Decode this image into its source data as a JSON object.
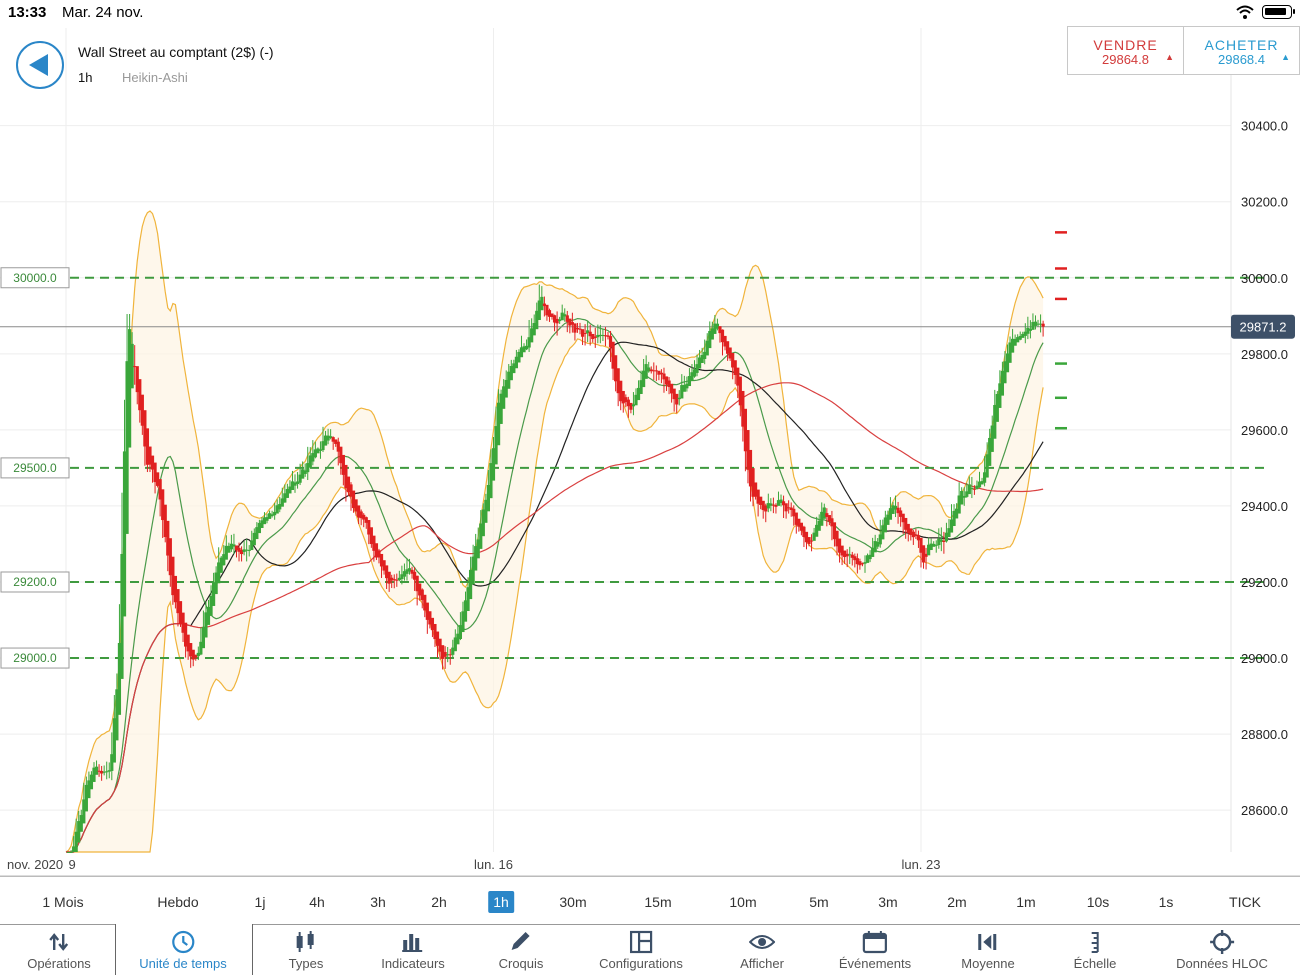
{
  "status_bar": {
    "time": "13:33",
    "date": "Mar. 24 nov."
  },
  "header": {
    "title": "Wall Street au comptant (2$) (-)",
    "interval": "1h",
    "chart_type": "Heikin-Ashi"
  },
  "quote": {
    "sell_label": "VENDRE",
    "sell_price": "29864.8",
    "buy_label": "ACHETER",
    "buy_price": "29868.4"
  },
  "colors": {
    "accent": "#2a86c8",
    "sell": "#d23b3b",
    "buy": "#2a9bd0",
    "candle_up": "#3aa63a",
    "candle_down": "#e02020",
    "bollinger": "#f0b43c",
    "ma_fast": "#4a9a4a",
    "ma_mid": "#222222",
    "ma_slow": "#d94040",
    "level_line": "#3f9a3f"
  },
  "chart_data": {
    "type": "candlestick",
    "y_ticks": [
      "30400.0",
      "30200.0",
      "30000.0",
      "29800.0",
      "29600.0",
      "29400.0",
      "29200.0",
      "29000.0",
      "28800.0",
      "28600.0"
    ],
    "y_tick_values": [
      30400,
      30200,
      30000,
      29800,
      29600,
      29400,
      29200,
      29000,
      28800,
      28600
    ],
    "ylim": [
      28490,
      30520
    ],
    "x_range_days": [
      9,
      24.5
    ],
    "date_labels": [
      {
        "text": "nov. 2020",
        "day": 8.45
      },
      {
        "text": "9",
        "day": 9.1
      },
      {
        "text": "lun. 16",
        "day": 16.0
      },
      {
        "text": "lun. 23",
        "day": 23.0
      }
    ],
    "levels": [
      {
        "label": "30000.0",
        "value": 30000
      },
      {
        "label": "29500.0",
        "value": 29500
      },
      {
        "label": "29200.0",
        "value": 29200
      },
      {
        "label": "29000.0",
        "value": 29000
      }
    ],
    "current_price": {
      "label": "29871.2",
      "value": 29871.2
    },
    "right_markers": [
      {
        "value": 30120,
        "color": "red"
      },
      {
        "value": 30025,
        "color": "red"
      },
      {
        "value": 29945,
        "color": "red"
      },
      {
        "value": 29775,
        "color": "green"
      },
      {
        "value": 29685,
        "color": "green"
      },
      {
        "value": 29605,
        "color": "green"
      }
    ],
    "path": [
      [
        9.0,
        28450
      ],
      [
        9.4,
        28710
      ],
      [
        9.7,
        28700
      ],
      [
        9.85,
        29000
      ],
      [
        10.0,
        29900
      ],
      [
        10.15,
        29700
      ],
      [
        10.3,
        29520
      ],
      [
        10.5,
        29450
      ],
      [
        10.7,
        29200
      ],
      [
        10.9,
        29050
      ],
      [
        11.1,
        28980
      ],
      [
        11.3,
        29150
      ],
      [
        11.6,
        29300
      ],
      [
        11.9,
        29280
      ],
      [
        12.2,
        29350
      ],
      [
        12.5,
        29420
      ],
      [
        12.8,
        29480
      ],
      [
        13.1,
        29550
      ],
      [
        13.35,
        29600
      ],
      [
        13.55,
        29450
      ],
      [
        13.8,
        29380
      ],
      [
        14.0,
        29300
      ],
      [
        14.3,
        29200
      ],
      [
        14.6,
        29250
      ],
      [
        14.8,
        29150
      ],
      [
        15.0,
        29050
      ],
      [
        15.2,
        29000
      ],
      [
        15.45,
        29100
      ],
      [
        15.7,
        29300
      ],
      [
        15.9,
        29450
      ],
      [
        16.1,
        29700
      ],
      [
        16.35,
        29780
      ],
      [
        16.6,
        29850
      ],
      [
        16.75,
        29950
      ],
      [
        16.9,
        29880
      ],
      [
        17.1,
        29900
      ],
      [
        17.3,
        29870
      ],
      [
        17.6,
        29850
      ],
      [
        17.85,
        29850
      ],
      [
        18.0,
        29700
      ],
      [
        18.2,
        29650
      ],
      [
        18.5,
        29780
      ],
      [
        18.8,
        29730
      ],
      [
        19.0,
        29680
      ],
      [
        19.2,
        29750
      ],
      [
        19.45,
        29810
      ],
      [
        19.6,
        29880
      ],
      [
        19.8,
        29820
      ],
      [
        20.0,
        29700
      ],
      [
        20.2,
        29420
      ],
      [
        20.45,
        29390
      ],
      [
        20.7,
        29420
      ],
      [
        20.95,
        29350
      ],
      [
        21.2,
        29300
      ],
      [
        21.4,
        29400
      ],
      [
        21.6,
        29300
      ],
      [
        21.8,
        29260
      ],
      [
        22.0,
        29250
      ],
      [
        22.3,
        29320
      ],
      [
        22.5,
        29420
      ],
      [
        22.75,
        29350
      ],
      [
        23.0,
        29270
      ],
      [
        23.15,
        29280
      ],
      [
        23.4,
        29330
      ],
      [
        23.6,
        29420
      ],
      [
        23.8,
        29450
      ],
      [
        24.0,
        29480
      ],
      [
        24.15,
        29620
      ],
      [
        24.3,
        29760
      ],
      [
        24.45,
        29850
      ],
      [
        24.7,
        29860
      ],
      [
        24.9,
        29880
      ],
      [
        25.0,
        29871
      ]
    ]
  },
  "timeframes": [
    {
      "label": "1 Mois",
      "active": false
    },
    {
      "label": "Hebdo",
      "active": false
    },
    {
      "label": "1j",
      "active": false
    },
    {
      "label": "4h",
      "active": false
    },
    {
      "label": "3h",
      "active": false
    },
    {
      "label": "2h",
      "active": false
    },
    {
      "label": "1h",
      "active": true
    },
    {
      "label": "30m",
      "active": false
    },
    {
      "label": "15m",
      "active": false
    },
    {
      "label": "10m",
      "active": false
    },
    {
      "label": "5m",
      "active": false
    },
    {
      "label": "3m",
      "active": false
    },
    {
      "label": "2m",
      "active": false
    },
    {
      "label": "1m",
      "active": false
    },
    {
      "label": "10s",
      "active": false
    },
    {
      "label": "1s",
      "active": false
    },
    {
      "label": "TICK",
      "active": false
    }
  ],
  "toolbar": [
    {
      "label": "Opérations",
      "icon": "up-down-arrows-icon",
      "active": false
    },
    {
      "label": "Unité de temps",
      "icon": "clock-icon",
      "active": true
    },
    {
      "label": "Types",
      "icon": "candlestick-icon",
      "active": false
    },
    {
      "label": "Indicateurs",
      "icon": "bar-chart-icon",
      "active": false
    },
    {
      "label": "Croquis",
      "icon": "pencil-icon",
      "active": false
    },
    {
      "label": "Configurations",
      "icon": "layout-icon",
      "active": false
    },
    {
      "label": "Afficher",
      "icon": "eye-icon",
      "active": false
    },
    {
      "label": "Événements",
      "icon": "calendar-icon",
      "active": false
    },
    {
      "label": "Moyenne",
      "icon": "average-icon",
      "active": false
    },
    {
      "label": "Échelle",
      "icon": "scale-icon",
      "active": false
    },
    {
      "label": "Données HLOC",
      "icon": "crosshair-icon",
      "active": false
    }
  ]
}
